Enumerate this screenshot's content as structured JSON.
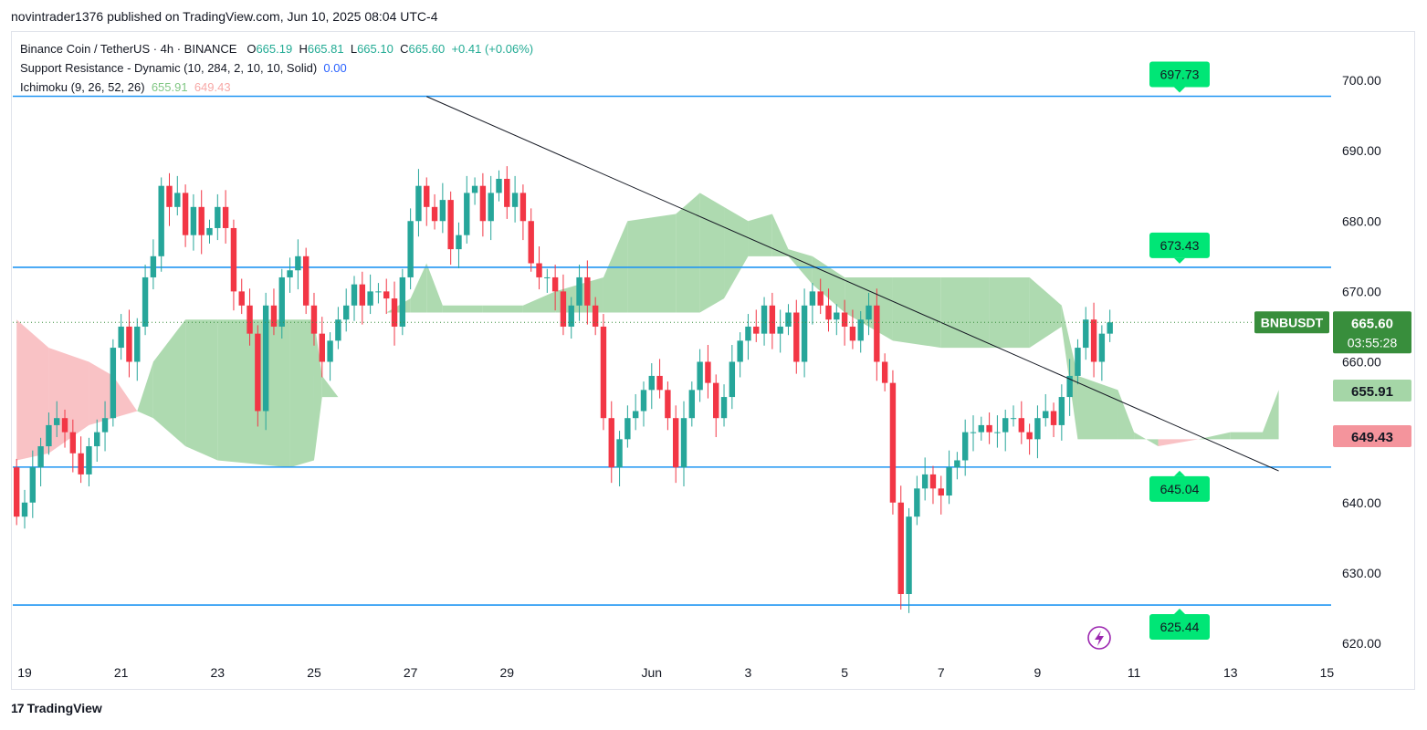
{
  "publisher_line": "novintrader1376 published on TradingView.com, Jun 10, 2025 08:04 UTC-4",
  "legend": {
    "symbol": "Binance Coin / TetherUS · 4h · BINANCE",
    "o_label": "O",
    "o_value": "665.19",
    "h_label": "H",
    "h_value": "665.81",
    "l_label": "L",
    "l_value": "665.10",
    "c_label": "C",
    "c_value": "665.60",
    "change": "+0.41 (+0.06%)",
    "indicator1": "Support Resistance - Dynamic (10, 284, 2, 10, 10, Solid)",
    "indicator1_value": "0.00",
    "indicator2": "Ichimoku (9, 26, 52, 26)",
    "indicator2_value_a": "655.91",
    "indicator2_value_b": "649.43"
  },
  "footer": {
    "logo": "17",
    "brand": "TradingView"
  },
  "colors": {
    "up": "#22ab94",
    "up_fill": "#26a69a",
    "down": "#f23645",
    "level": "#2196f3",
    "cloud_green": "#a5d6a7",
    "cloud_red": "#f8bbbf",
    "label_green": "#00e676",
    "price_tag": "#388e3c",
    "trend": "#131722",
    "icon_purple": "#9c27b0"
  },
  "chart_data": {
    "type": "candlestick",
    "symbol": "BNBUSDT",
    "timeframe": "4h",
    "ylim": [
      617,
      704
    ],
    "y_ticks": [
      "700.00",
      "690.00",
      "680.00",
      "670.00",
      "660.00",
      "650.00",
      "640.00",
      "630.00",
      "620.00"
    ],
    "x_ticks": [
      {
        "label": "19",
        "date": "2025-05-19"
      },
      {
        "label": "21",
        "date": "2025-05-21"
      },
      {
        "label": "23",
        "date": "2025-05-23"
      },
      {
        "label": "25",
        "date": "2025-05-25"
      },
      {
        "label": "27",
        "date": "2025-05-27"
      },
      {
        "label": "29",
        "date": "2025-05-29"
      },
      {
        "label": "Jun",
        "date": "2025-06-01"
      },
      {
        "label": "3",
        "date": "2025-06-03"
      },
      {
        "label": "5",
        "date": "2025-06-05"
      },
      {
        "label": "7",
        "date": "2025-06-07"
      },
      {
        "label": "9",
        "date": "2025-06-09"
      },
      {
        "label": "11",
        "date": "2025-06-11"
      },
      {
        "label": "13",
        "date": "2025-06-13"
      },
      {
        "label": "15",
        "date": "2025-06-15"
      }
    ],
    "levels": [
      {
        "value": 697.73,
        "label": "697.73"
      },
      {
        "value": 673.43,
        "label": "673.43"
      },
      {
        "value": 645.04,
        "label": "645.04"
      },
      {
        "value": 625.44,
        "label": "625.44"
      }
    ],
    "current_price": {
      "symbol": "BNBUSDT",
      "value": "665.60",
      "countdown": "03:55:28"
    },
    "ichimoku_tags": {
      "span_a": "655.91",
      "span_b": "649.43"
    },
    "trendline": [
      {
        "date": "2025-05-27T08:00",
        "price": 697.7
      },
      {
        "date": "2025-06-14T00:00",
        "price": 644.5
      }
    ],
    "closes": [
      638,
      640,
      645,
      648,
      651,
      652,
      650,
      647,
      644,
      648,
      650,
      652,
      662,
      665,
      660,
      665,
      672,
      675,
      685,
      682,
      684,
      678,
      682,
      678,
      679,
      682,
      679,
      670,
      668,
      664,
      653,
      668,
      665,
      672,
      673,
      675,
      668,
      664,
      660,
      663,
      666,
      668,
      671,
      668,
      670,
      670,
      669,
      665,
      672,
      680,
      685,
      682,
      680,
      683,
      676,
      678,
      684,
      685,
      680,
      684,
      686,
      682,
      684,
      680,
      674,
      672,
      672,
      670,
      665,
      668,
      672,
      668,
      665,
      652,
      645,
      649,
      652,
      653,
      656,
      658,
      656,
      652,
      645,
      652,
      656,
      660,
      657,
      652,
      655,
      660,
      663,
      665,
      664,
      668,
      664,
      665,
      667,
      660,
      668,
      670,
      668,
      666,
      667,
      665,
      663,
      666,
      668,
      660,
      657,
      640,
      627,
      638,
      642,
      644,
      642,
      641,
      645,
      646,
      650,
      650,
      651,
      650,
      650,
      652,
      652,
      650,
      649,
      652,
      653,
      651,
      655,
      658,
      662,
      666,
      660,
      664,
      665.6
    ],
    "open_first": 645,
    "start_date": "2025-05-18T20:00"
  }
}
